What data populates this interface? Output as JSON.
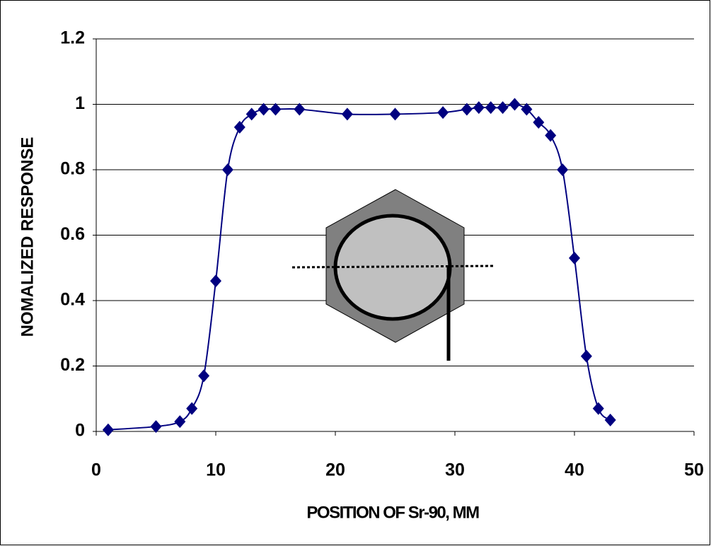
{
  "chart_data": {
    "type": "scatter",
    "x_label": "POSITION OF Sr-90, MM",
    "y_label": "NOMALIZED RESPONSE",
    "series": [
      {
        "color": "#000080",
        "x": [
          1,
          5,
          7,
          8,
          9,
          10,
          11,
          12,
          13,
          14,
          15,
          17,
          21,
          25,
          29,
          31,
          32,
          33,
          34,
          35,
          36,
          37,
          38,
          39,
          40,
          41,
          42,
          43
        ],
        "values": [
          0.005,
          0.015,
          0.03,
          0.07,
          0.17,
          0.46,
          0.8,
          0.93,
          0.97,
          0.985,
          0.985,
          0.985,
          0.97,
          0.97,
          0.975,
          0.985,
          0.99,
          0.99,
          0.99,
          1.0,
          0.985,
          0.945,
          0.905,
          0.8,
          0.53,
          0.23,
          0.07,
          0.035
        ]
      }
    ],
    "xlim": [
      0,
      50
    ],
    "xticks": [
      0,
      10,
      20,
      30,
      40,
      50
    ],
    "ylim": [
      0,
      1.2
    ],
    "yticks": [
      0,
      0.2,
      0.4,
      0.6,
      0.8,
      1,
      1.2
    ],
    "grid": true,
    "smooth": true
  }
}
